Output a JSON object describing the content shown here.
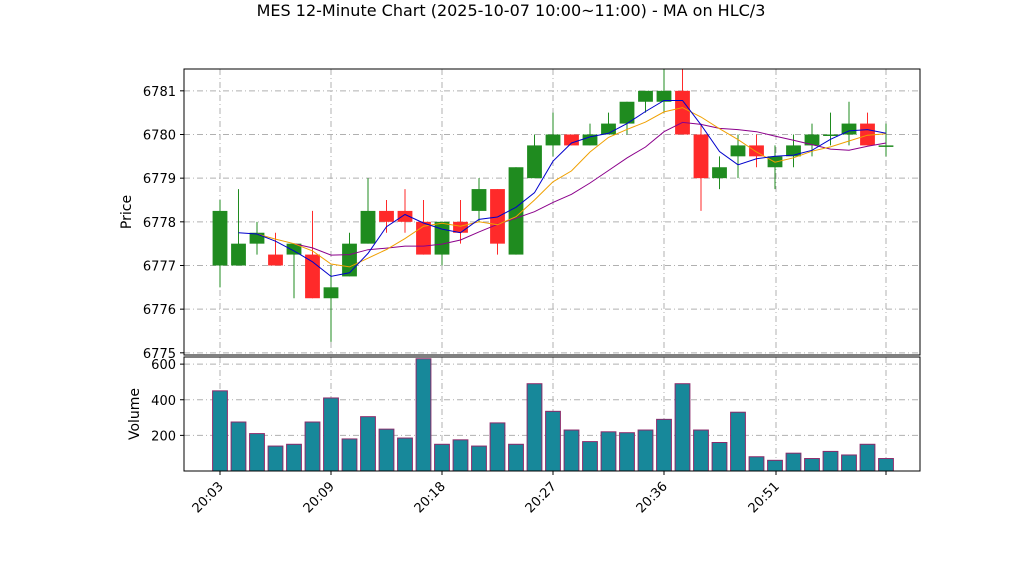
{
  "chart_data": {
    "type": "candlestick",
    "title": "MES 12-Minute Chart (2025-10-07 10:00~11:00) - MA on HLC/3",
    "colors": {
      "up": "#1f8b1f",
      "down": "#ff2a2a",
      "ma_fast": "#0000cc",
      "ma_mid": "#f0a000",
      "ma_slow": "#8b008b",
      "volume_fill": "#17889a",
      "volume_edge": "#8b2a6a"
    },
    "price_panel": {
      "ylabel": "Price",
      "yticks": [
        "6775",
        "6776",
        "6777",
        "6778",
        "6779",
        "6780",
        "6781"
      ],
      "ylim": [
        6774.95,
        6781.5
      ],
      "grid": true
    },
    "volume_panel": {
      "ylabel": "Volume",
      "yticks": [
        "200",
        "400",
        "600"
      ],
      "ylim": [
        0,
        640
      ],
      "grid": true
    },
    "x_ticks": [
      "20:03",
      "20:09",
      "20:18",
      "20:27",
      "20:36",
      "20:51"
    ],
    "candles": [
      {
        "o": 6777.0,
        "h": 6778.5,
        "l": 6776.5,
        "c": 6778.25,
        "v": 450
      },
      {
        "o": 6777.0,
        "h": 6778.75,
        "l": 6777.0,
        "c": 6777.5,
        "v": 275
      },
      {
        "o": 6777.5,
        "h": 6778.0,
        "l": 6777.25,
        "c": 6777.75,
        "v": 210
      },
      {
        "o": 6777.25,
        "h": 6777.75,
        "l": 6777.0,
        "c": 6777.0,
        "v": 140
      },
      {
        "o": 6777.25,
        "h": 6777.5,
        "l": 6776.25,
        "c": 6777.5,
        "v": 150
      },
      {
        "o": 6777.25,
        "h": 6778.25,
        "l": 6776.25,
        "c": 6776.25,
        "v": 275
      },
      {
        "o": 6776.25,
        "h": 6777.0,
        "l": 6775.25,
        "c": 6776.5,
        "v": 410
      },
      {
        "o": 6776.75,
        "h": 6777.75,
        "l": 6776.75,
        "c": 6777.5,
        "v": 180
      },
      {
        "o": 6777.5,
        "h": 6779.0,
        "l": 6777.5,
        "c": 6778.25,
        "v": 305
      },
      {
        "o": 6778.25,
        "h": 6778.5,
        "l": 6777.75,
        "c": 6778.0,
        "v": 235
      },
      {
        "o": 6778.25,
        "h": 6778.75,
        "l": 6777.75,
        "c": 6778.0,
        "v": 185
      },
      {
        "o": 6778.0,
        "h": 6778.5,
        "l": 6777.25,
        "c": 6777.25,
        "v": 630
      },
      {
        "o": 6777.25,
        "h": 6778.0,
        "l": 6777.0,
        "c": 6778.0,
        "v": 150
      },
      {
        "o": 6778.0,
        "h": 6778.5,
        "l": 6777.5,
        "c": 6777.75,
        "v": 175
      },
      {
        "o": 6778.25,
        "h": 6779.0,
        "l": 6778.0,
        "c": 6778.75,
        "v": 140
      },
      {
        "o": 6778.75,
        "h": 6778.75,
        "l": 6777.25,
        "c": 6777.5,
        "v": 270
      },
      {
        "o": 6777.25,
        "h": 6779.25,
        "l": 6777.25,
        "c": 6779.25,
        "v": 150
      },
      {
        "o": 6779.0,
        "h": 6780.0,
        "l": 6779.0,
        "c": 6779.75,
        "v": 490
      },
      {
        "o": 6779.75,
        "h": 6780.5,
        "l": 6779.5,
        "c": 6780.0,
        "v": 335
      },
      {
        "o": 6780.0,
        "h": 6780.0,
        "l": 6779.75,
        "c": 6779.75,
        "v": 230
      },
      {
        "o": 6779.75,
        "h": 6780.25,
        "l": 6779.75,
        "c": 6780.0,
        "v": 165
      },
      {
        "o": 6780.0,
        "h": 6780.5,
        "l": 6780.0,
        "c": 6780.25,
        "v": 220
      },
      {
        "o": 6780.25,
        "h": 6780.75,
        "l": 6780.0,
        "c": 6780.75,
        "v": 215
      },
      {
        "o": 6780.75,
        "h": 6781.0,
        "l": 6780.5,
        "c": 6781.0,
        "v": 230
      },
      {
        "o": 6780.75,
        "h": 6781.5,
        "l": 6780.5,
        "c": 6781.0,
        "v": 290
      },
      {
        "o": 6781.0,
        "h": 6781.5,
        "l": 6780.0,
        "c": 6780.0,
        "v": 490
      },
      {
        "o": 6780.0,
        "h": 6780.25,
        "l": 6778.25,
        "c": 6779.0,
        "v": 230
      },
      {
        "o": 6779.0,
        "h": 6779.5,
        "l": 6778.75,
        "c": 6779.25,
        "v": 160
      },
      {
        "o": 6779.5,
        "h": 6780.0,
        "l": 6779.0,
        "c": 6779.75,
        "v": 330
      },
      {
        "o": 6779.75,
        "h": 6780.0,
        "l": 6779.25,
        "c": 6779.5,
        "v": 80
      },
      {
        "o": 6779.25,
        "h": 6779.75,
        "l": 6778.75,
        "c": 6779.5,
        "v": 60
      },
      {
        "o": 6779.5,
        "h": 6780.0,
        "l": 6779.25,
        "c": 6779.75,
        "v": 100
      },
      {
        "o": 6779.75,
        "h": 6780.25,
        "l": 6779.5,
        "c": 6780.0,
        "v": 70
      },
      {
        "o": 6780.0,
        "h": 6780.5,
        "l": 6779.75,
        "c": 6780.0,
        "v": 110
      },
      {
        "o": 6780.0,
        "h": 6780.75,
        "l": 6779.75,
        "c": 6780.25,
        "v": 90
      },
      {
        "o": 6780.25,
        "h": 6780.5,
        "l": 6779.75,
        "c": 6779.75,
        "v": 150
      },
      {
        "o": 6779.75,
        "h": 6780.25,
        "l": 6779.5,
        "c": 6779.75,
        "v": 70
      }
    ]
  }
}
